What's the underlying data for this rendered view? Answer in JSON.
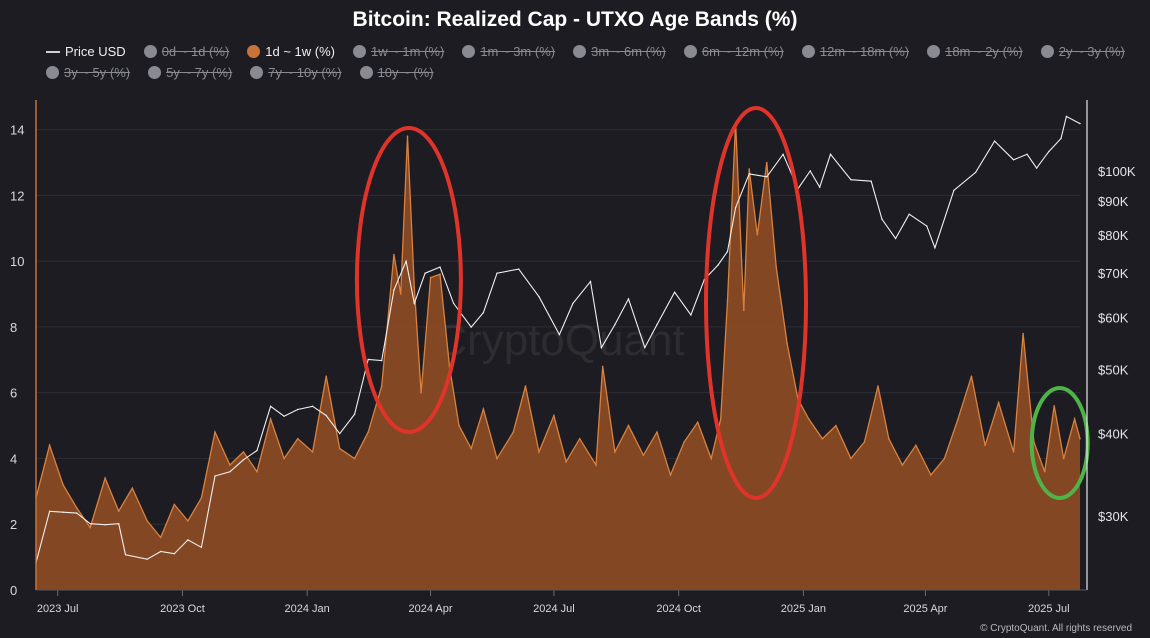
{
  "title": "Bitcoin: Realized Cap - UTXO Age Bands (%)",
  "legend": [
    {
      "label": "Price USD",
      "swatch": "line",
      "color": "#d0d0d0",
      "active": true
    },
    {
      "label": "0d ~ 1d (%)",
      "swatch": "dot",
      "color": "#8a8a93",
      "active": false
    },
    {
      "label": "1d ~ 1w (%)",
      "swatch": "dot",
      "color": "#c8733a",
      "active": true
    },
    {
      "label": "1w ~ 1m (%)",
      "swatch": "dot",
      "color": "#8a8a93",
      "active": false
    },
    {
      "label": "1m ~ 3m (%)",
      "swatch": "dot",
      "color": "#8a8a93",
      "active": false
    },
    {
      "label": "3m ~ 6m (%)",
      "swatch": "dot",
      "color": "#8a8a93",
      "active": false
    },
    {
      "label": "6m ~ 12m (%)",
      "swatch": "dot",
      "color": "#8a8a93",
      "active": false
    },
    {
      "label": "12m ~ 18m (%)",
      "swatch": "dot",
      "color": "#8a8a93",
      "active": false
    },
    {
      "label": "18m ~ 2y (%)",
      "swatch": "dot",
      "color": "#8a8a93",
      "active": false
    },
    {
      "label": "2y ~ 3y (%)",
      "swatch": "dot",
      "color": "#8a8a93",
      "active": false
    },
    {
      "label": "3y ~ 5y (%)",
      "swatch": "dot",
      "color": "#8a8a93",
      "active": false
    },
    {
      "label": "5y ~ 7y (%)",
      "swatch": "dot",
      "color": "#8a8a93",
      "active": false
    },
    {
      "label": "7y ~ 10y (%)",
      "swatch": "dot",
      "color": "#8a8a93",
      "active": false
    },
    {
      "label": "10y ~ (%)",
      "swatch": "dot",
      "color": "#8a8a93",
      "active": false
    }
  ],
  "footer": "© CryptoQuant. All rights reserved",
  "watermark": "CryptoQuant",
  "colors": {
    "background": "#1c1c22",
    "area_fill": "#8a4a24",
    "area_line": "#d9823f",
    "price_line": "#f0f0f0",
    "highlight_red": "#e0342a",
    "highlight_green": "#4fb347"
  },
  "chart_data": {
    "type": "area",
    "x_ticks": [
      "2023 Jul",
      "2023 Oct",
      "2024 Jan",
      "2024 Apr",
      "2024 Jul",
      "2024 Oct",
      "2025 Jan",
      "2025 Apr",
      "2025 Jul"
    ],
    "x_range": [
      "2023-06-15",
      "2025-07-24"
    ],
    "y_left": {
      "ticks": [
        0,
        2,
        4,
        6,
        8,
        10,
        12,
        14
      ],
      "lim": [
        0,
        14.9
      ]
    },
    "y_right": {
      "ticks": [
        "$30K",
        "$40K",
        "$50K",
        "$60K",
        "$70K",
        "$80K",
        "$90K",
        "$100K"
      ],
      "values": [
        30000,
        40000,
        50000,
        60000,
        70000,
        80000,
        90000,
        100000
      ],
      "scale": "log"
    },
    "series": [
      {
        "name": "1d ~ 1w (%)",
        "axis": "left",
        "points": [
          [
            "2023-06-15",
            2.8
          ],
          [
            "2023-06-25",
            4.4
          ],
          [
            "2023-07-05",
            3.2
          ],
          [
            "2023-07-15",
            2.5
          ],
          [
            "2023-07-25",
            1.9
          ],
          [
            "2023-08-05",
            3.4
          ],
          [
            "2023-08-15",
            2.4
          ],
          [
            "2023-08-25",
            3.1
          ],
          [
            "2023-09-05",
            2.1
          ],
          [
            "2023-09-15",
            1.6
          ],
          [
            "2023-09-25",
            2.6
          ],
          [
            "2023-10-05",
            2.1
          ],
          [
            "2023-10-15",
            2.8
          ],
          [
            "2023-10-25",
            4.8
          ],
          [
            "2023-11-05",
            3.8
          ],
          [
            "2023-11-15",
            4.2
          ],
          [
            "2023-11-25",
            3.6
          ],
          [
            "2023-12-05",
            5.2
          ],
          [
            "2023-12-15",
            4.0
          ],
          [
            "2023-12-25",
            4.6
          ],
          [
            "2024-01-05",
            4.2
          ],
          [
            "2024-01-15",
            6.5
          ],
          [
            "2024-01-25",
            4.3
          ],
          [
            "2024-02-05",
            4.0
          ],
          [
            "2024-02-15",
            4.8
          ],
          [
            "2024-02-25",
            6.2
          ],
          [
            "2024-03-05",
            10.2
          ],
          [
            "2024-03-10",
            9.0
          ],
          [
            "2024-03-15",
            13.8
          ],
          [
            "2024-03-20",
            9.2
          ],
          [
            "2024-03-25",
            6.0
          ],
          [
            "2024-04-01",
            9.5
          ],
          [
            "2024-04-08",
            9.6
          ],
          [
            "2024-04-15",
            6.8
          ],
          [
            "2024-04-22",
            5.0
          ],
          [
            "2024-05-01",
            4.3
          ],
          [
            "2024-05-10",
            5.5
          ],
          [
            "2024-05-20",
            4.0
          ],
          [
            "2024-06-01",
            4.8
          ],
          [
            "2024-06-10",
            6.2
          ],
          [
            "2024-06-20",
            4.2
          ],
          [
            "2024-07-01",
            5.3
          ],
          [
            "2024-07-10",
            3.9
          ],
          [
            "2024-07-20",
            4.6
          ],
          [
            "2024-08-01",
            3.8
          ],
          [
            "2024-08-06",
            6.8
          ],
          [
            "2024-08-15",
            4.2
          ],
          [
            "2024-08-25",
            5.0
          ],
          [
            "2024-09-05",
            4.1
          ],
          [
            "2024-09-15",
            4.8
          ],
          [
            "2024-09-25",
            3.5
          ],
          [
            "2024-10-05",
            4.5
          ],
          [
            "2024-10-15",
            5.1
          ],
          [
            "2024-10-25",
            4.0
          ],
          [
            "2024-11-01",
            5.2
          ],
          [
            "2024-11-06",
            8.8
          ],
          [
            "2024-11-12",
            14.2
          ],
          [
            "2024-11-18",
            8.5
          ],
          [
            "2024-11-22",
            12.8
          ],
          [
            "2024-11-28",
            10.8
          ],
          [
            "2024-12-05",
            13.0
          ],
          [
            "2024-12-12",
            9.8
          ],
          [
            "2024-12-20",
            7.5
          ],
          [
            "2024-12-28",
            5.8
          ],
          [
            "2025-01-05",
            5.2
          ],
          [
            "2025-01-15",
            4.6
          ],
          [
            "2025-01-25",
            5.0
          ],
          [
            "2025-02-05",
            4.0
          ],
          [
            "2025-02-15",
            4.5
          ],
          [
            "2025-02-25",
            6.2
          ],
          [
            "2025-03-05",
            4.6
          ],
          [
            "2025-03-15",
            3.8
          ],
          [
            "2025-03-25",
            4.4
          ],
          [
            "2025-04-05",
            3.5
          ],
          [
            "2025-04-15",
            4.0
          ],
          [
            "2025-04-25",
            5.2
          ],
          [
            "2025-05-05",
            6.5
          ],
          [
            "2025-05-15",
            4.4
          ],
          [
            "2025-05-25",
            5.7
          ],
          [
            "2025-06-05",
            4.2
          ],
          [
            "2025-06-12",
            7.8
          ],
          [
            "2025-06-20",
            4.5
          ],
          [
            "2025-06-28",
            3.6
          ],
          [
            "2025-07-05",
            5.6
          ],
          [
            "2025-07-12",
            4.0
          ],
          [
            "2025-07-20",
            5.2
          ],
          [
            "2025-07-24",
            4.6
          ]
        ]
      },
      {
        "name": "Price USD",
        "axis": "right",
        "points": [
          [
            "2023-06-15",
            25500
          ],
          [
            "2023-06-25",
            30500
          ],
          [
            "2023-07-05",
            30400
          ],
          [
            "2023-07-15",
            30300
          ],
          [
            "2023-07-25",
            29200
          ],
          [
            "2023-08-05",
            29100
          ],
          [
            "2023-08-15",
            29200
          ],
          [
            "2023-08-20",
            26200
          ],
          [
            "2023-09-05",
            25800
          ],
          [
            "2023-09-15",
            26500
          ],
          [
            "2023-09-25",
            26300
          ],
          [
            "2023-10-05",
            27600
          ],
          [
            "2023-10-15",
            26900
          ],
          [
            "2023-10-25",
            34500
          ],
          [
            "2023-11-05",
            35000
          ],
          [
            "2023-11-15",
            36500
          ],
          [
            "2023-11-25",
            37700
          ],
          [
            "2023-12-05",
            44000
          ],
          [
            "2023-12-15",
            42500
          ],
          [
            "2023-12-25",
            43500
          ],
          [
            "2024-01-05",
            44000
          ],
          [
            "2024-01-15",
            42600
          ],
          [
            "2024-01-25",
            40000
          ],
          [
            "2024-02-05",
            42800
          ],
          [
            "2024-02-15",
            51800
          ],
          [
            "2024-02-25",
            51600
          ],
          [
            "2024-03-05",
            66000
          ],
          [
            "2024-03-14",
            73000
          ],
          [
            "2024-03-20",
            63000
          ],
          [
            "2024-03-28",
            70000
          ],
          [
            "2024-04-08",
            71500
          ],
          [
            "2024-04-18",
            63000
          ],
          [
            "2024-05-01",
            58000
          ],
          [
            "2024-05-10",
            61000
          ],
          [
            "2024-05-20",
            70000
          ],
          [
            "2024-06-05",
            71000
          ],
          [
            "2024-06-20",
            64500
          ],
          [
            "2024-07-05",
            56500
          ],
          [
            "2024-07-15",
            63000
          ],
          [
            "2024-07-28",
            68000
          ],
          [
            "2024-08-05",
            54000
          ],
          [
            "2024-08-15",
            58500
          ],
          [
            "2024-08-25",
            64000
          ],
          [
            "2024-09-06",
            54000
          ],
          [
            "2024-09-15",
            58500
          ],
          [
            "2024-09-28",
            65500
          ],
          [
            "2024-10-10",
            60500
          ],
          [
            "2024-10-20",
            68500
          ],
          [
            "2024-10-30",
            72000
          ],
          [
            "2024-11-06",
            75500
          ],
          [
            "2024-11-12",
            88000
          ],
          [
            "2024-11-22",
            99000
          ],
          [
            "2024-12-05",
            98000
          ],
          [
            "2024-12-17",
            106000
          ],
          [
            "2024-12-28",
            94000
          ],
          [
            "2025-01-06",
            100000
          ],
          [
            "2025-01-13",
            94500
          ],
          [
            "2025-01-21",
            106000
          ],
          [
            "2025-02-05",
            97000
          ],
          [
            "2025-02-20",
            96500
          ],
          [
            "2025-02-28",
            84500
          ],
          [
            "2025-03-10",
            79000
          ],
          [
            "2025-03-20",
            86000
          ],
          [
            "2025-04-02",
            82500
          ],
          [
            "2025-04-08",
            76500
          ],
          [
            "2025-04-22",
            93500
          ],
          [
            "2025-05-08",
            99500
          ],
          [
            "2025-05-22",
            111000
          ],
          [
            "2025-06-05",
            104000
          ],
          [
            "2025-06-15",
            106000
          ],
          [
            "2025-06-22",
            101000
          ],
          [
            "2025-07-01",
            107000
          ],
          [
            "2025-07-10",
            112000
          ],
          [
            "2025-07-14",
            121000
          ],
          [
            "2025-07-24",
            118000
          ]
        ]
      }
    ],
    "annotations": [
      {
        "shape": "ellipse",
        "color": "red",
        "center_date": "2024-03-16"
      },
      {
        "shape": "ellipse",
        "color": "red",
        "center_date": "2024-11-27"
      },
      {
        "shape": "ellipse",
        "color": "green",
        "center_date": "2025-07-09"
      }
    ],
    "grid": true,
    "legend_position": "top"
  }
}
